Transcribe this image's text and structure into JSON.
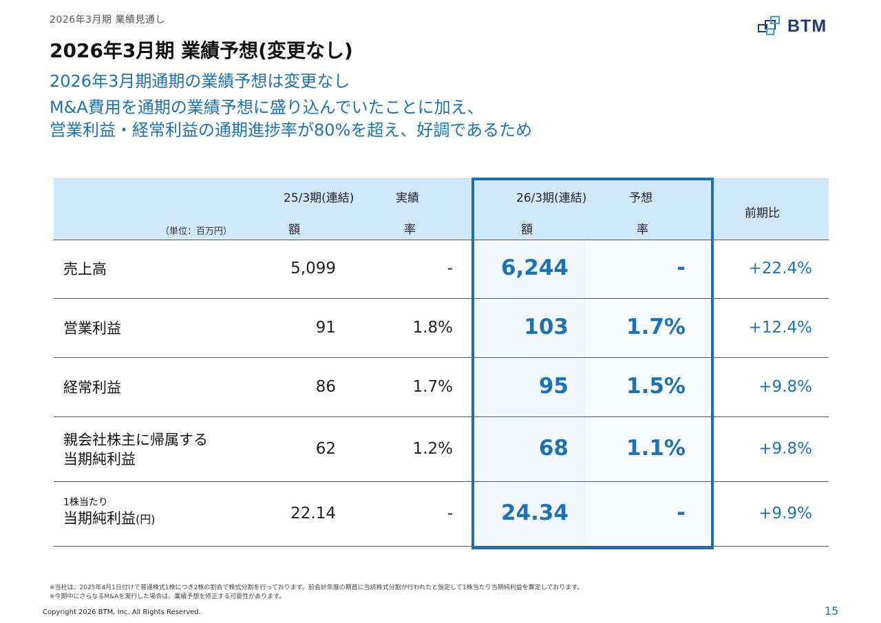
{
  "header": {
    "breadcrumb": "2026年3月期  業績見通し",
    "logo_text": "BTM",
    "title": "2026年3月期  業績予想(変更なし)",
    "subtitle": "2026年3月期通期の業績予想は変更なし",
    "reason_line1": "M&A費用を通期の業績予想に盛り込んでいたことに加え、",
    "reason_line2": "営業利益・経常利益の通期進捗率が80%を超え、好調であるため"
  },
  "table": {
    "unit": "（単位：百万円）",
    "prev_header": "25/3期(連結)",
    "prev_kind": "実績",
    "fc_header": "26/3期(連結)",
    "fc_kind": "予想",
    "col_amount": "額",
    "col_rate": "率",
    "yoy_header": "前期比",
    "rows": [
      {
        "label": "売上高",
        "prev_amount": "5,099",
        "prev_rate": "-",
        "fc_amount": "6,244",
        "fc_rate": "-",
        "yoy": "+22.4%"
      },
      {
        "label": "営業利益",
        "prev_amount": "91",
        "prev_rate": "1.8%",
        "fc_amount": "103",
        "fc_rate": "1.7%",
        "yoy": "+12.4%"
      },
      {
        "label": "経常利益",
        "prev_amount": "86",
        "prev_rate": "1.7%",
        "fc_amount": "95",
        "fc_rate": "1.5%",
        "yoy": "+9.8%"
      },
      {
        "label_line1": "親会社株主に帰属する",
        "label_line2": "当期純利益",
        "prev_amount": "62",
        "prev_rate": "1.2%",
        "fc_amount": "68",
        "fc_rate": "1.1%",
        "yoy": "+9.8%"
      },
      {
        "label_small": "1株当たり",
        "label_main": "当期純利益",
        "label_suffix": "(円)",
        "prev_amount": "22.14",
        "prev_rate": "-",
        "fc_amount": "24.34",
        "fc_rate": "-",
        "yoy": "+9.9%"
      }
    ]
  },
  "footnotes": {
    "note1": "※当社は、2025年4月1日付けで普通株式1株につき2株の割合で株式分割を行っております。前会計年度の期首に当該株式分割が行われたと仮定して1株当たり当期純利益を算定しております。",
    "note2": "※今期中にさらなるM&Aを実行した場合は、業績予想を修正する可能性があります。"
  },
  "footer": {
    "copyright": "Copyright 2026 BTM, Inc. All Rights Reserved.",
    "page_number": "15"
  },
  "colors": {
    "accent": "#1a73b8",
    "header_bg": "#cde9fb",
    "frame": "#1c6fb4"
  }
}
